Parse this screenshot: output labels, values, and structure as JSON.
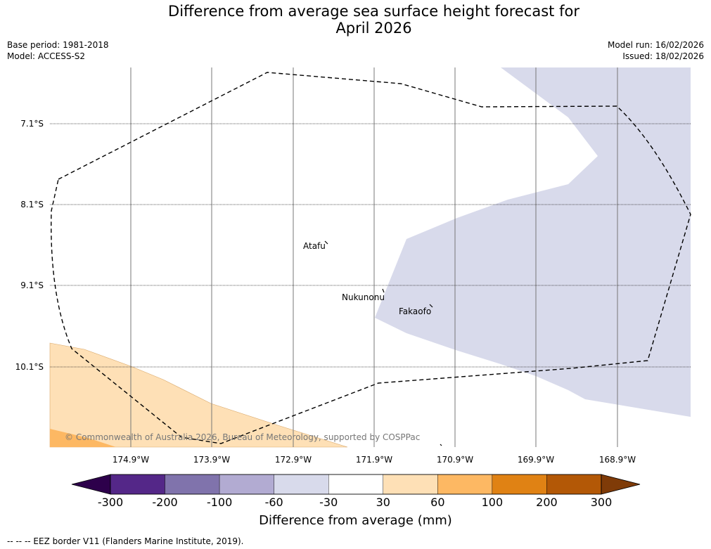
{
  "header": {
    "title_line1": "Difference from average sea surface height forecast for",
    "title_line2": "April 2026",
    "base_period": "Base period: 1981-2018",
    "model": "Model: ACCESS-S2",
    "model_run": "Model run: 16/02/2026",
    "issued": "Issued: 18/02/2026"
  },
  "map": {
    "latitude_labels": [
      "7.1°S",
      "8.1°S",
      "9.1°S",
      "10.1°S"
    ],
    "longitude_labels": [
      "174.9°W",
      "173.9°W",
      "172.9°W",
      "171.9°W",
      "170.9°W",
      "169.9°W",
      "168.9°W"
    ],
    "places": [
      "Atafu",
      "Nukunonu",
      "Fakaofo"
    ],
    "copyright": "© Commonwealth of Australia 2026, Bureau of Meteorology, supported by COSPPac"
  },
  "colorbar": {
    "ticks": [
      "-300",
      "-200",
      "-100",
      "-60",
      "-30",
      "30",
      "60",
      "100",
      "200",
      "300"
    ],
    "label": "Difference from average (mm)",
    "colors": {
      "below_min": "#2d004b",
      "bins": [
        "#542788",
        "#8073ac",
        "#b2abd2",
        "#d8daeb",
        "#ffffff",
        "#fee0b6",
        "#fdb863",
        "#e08214",
        "#b35806"
      ],
      "above_max": "#7f3b08"
    }
  },
  "legend": {
    "eez": "--  --  -- EEZ border V11 (Flanders Marine Institute, 2019)."
  }
}
